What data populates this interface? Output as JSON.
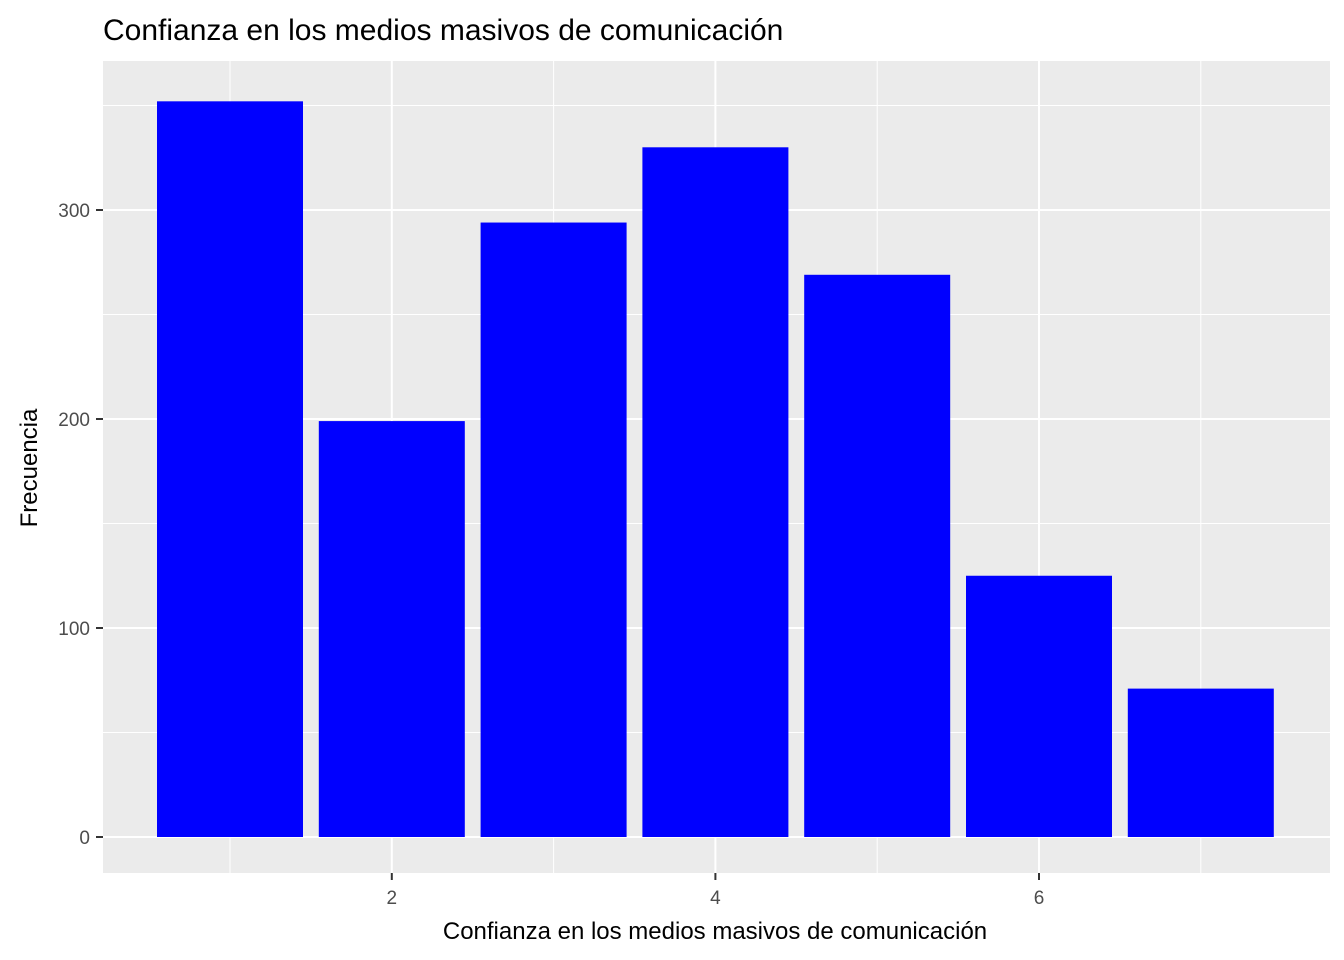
{
  "chart_data": {
    "type": "bar",
    "title": "Confianza en los medios masivos de comunicación",
    "xlabel": "Confianza en los medios masivos de comunicación",
    "ylabel": "Frecuencia",
    "x": [
      1,
      2,
      3,
      4,
      5,
      6,
      7
    ],
    "values": [
      352,
      199,
      294,
      330,
      269,
      125,
      71
    ],
    "xlim": [
      0.5,
      7.5
    ],
    "ylim": [
      0,
      370
    ],
    "xticks": [
      2,
      4,
      6
    ],
    "yticks": [
      0,
      100,
      200,
      300
    ],
    "grid": true,
    "legend": "none",
    "colors": {
      "bar": "#0000FF",
      "panel": "#EBEBEB",
      "grid": "#FFFFFF",
      "tick_text": "#4D4D4D",
      "tick_mark": "#333333"
    }
  }
}
